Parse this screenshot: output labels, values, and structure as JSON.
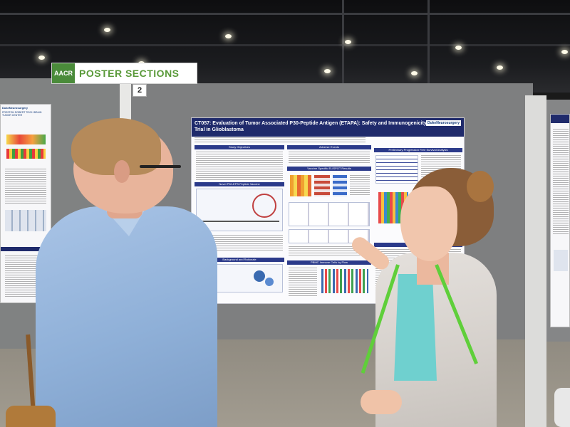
{
  "scene": {
    "signs": {
      "section": "POSTER SECTIONS",
      "org_logo": "AACR",
      "board_number": "2"
    },
    "poster": {
      "title": "CT057: Evaluation of Tumor Associated P30-Peptide Antigen (ETAPA): Safety and Immunogenicity in a Phase 1b Trial in Glioblastoma",
      "logo": "DukeNeurosurgery",
      "sections": [
        "Study Objectives",
        "Novel P30-EPS Peptide Vaccine",
        "Background and Rationale",
        "Adverse Events",
        "Vaccine Specific ELISPOT Results",
        "PBMC Immune Cells by Flow",
        "Preliminary Progression Free Survival Analysis",
        "Conclusions"
      ]
    },
    "left_poster": {
      "logo": "DukeNeurosurgery",
      "center": "PRESTON ROBERT TISCH BRAIN TUMOR CENTER"
    },
    "colors": {
      "poster_header": "#1f2a6b",
      "sign_green": "#5a9a3a",
      "lanyard": "#5fcf3a"
    }
  }
}
